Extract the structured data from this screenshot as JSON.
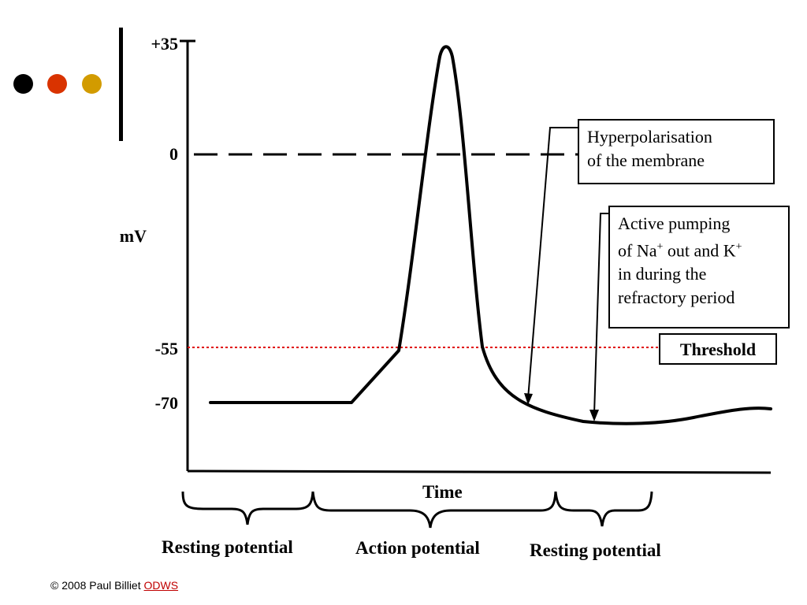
{
  "colors": {
    "dot1": "#000000",
    "dot2": "#d93300",
    "dot3": "#d29b00",
    "threshold_line": "#e00000"
  },
  "chart_data": {
    "type": "line",
    "ylabel": "mV",
    "xlabel": "Time",
    "y_ticks": [
      "+35",
      "0",
      "-55",
      "-70"
    ],
    "y_tick_values": [
      35,
      0,
      -55,
      -70
    ],
    "threshold_label": "Threshold",
    "threshold_value": -55,
    "zero_line": "dashed"
  },
  "annotations": {
    "hyperpolarisation": [
      "Hyperpolarisation",
      "of the membrane"
    ],
    "pumping": {
      "line1": "Active pumping",
      "line2_pre": "of Na",
      "sup1": "+",
      "line2_mid": " out and K",
      "sup2": "+",
      "line3": "in during the",
      "line4": "refractory period"
    }
  },
  "phases": [
    "Resting potential",
    "Action potential",
    "Resting potential"
  ],
  "footer": {
    "text": "© 2008 Paul Billiet ",
    "link": "ODWS"
  }
}
